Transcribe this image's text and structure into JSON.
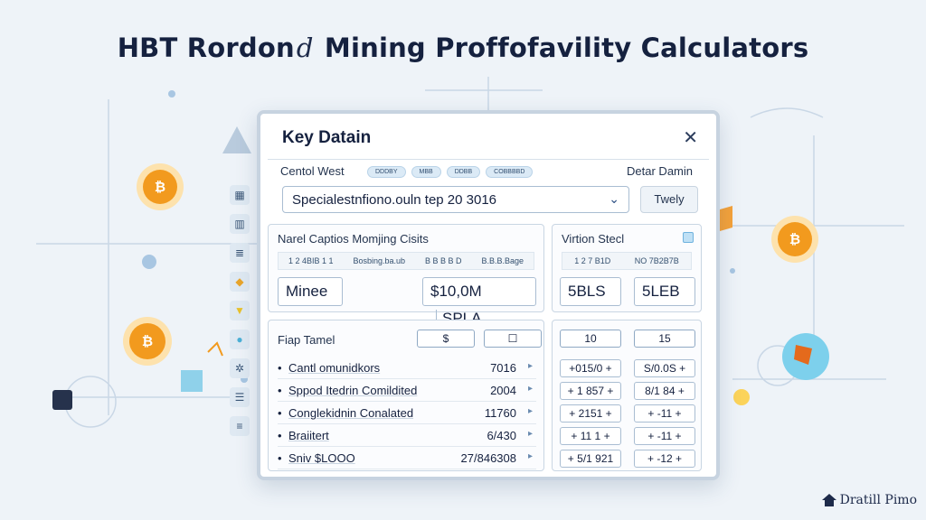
{
  "title": {
    "left": "HBT Rordon",
    "mid": "d",
    "right": "Mining Proffofavility Calculators"
  },
  "window": {
    "title": "Key Datain",
    "close": "✕",
    "row1": {
      "left_label": "Centol West",
      "chips": [
        "DDDBY",
        "MBB",
        "DDBB",
        "COBBBBD"
      ],
      "right_label": "Detar Damin"
    },
    "select": {
      "value": "Specialestnfiono.ouln tep 20 3016",
      "chevron": "⌄"
    },
    "button": "Twely",
    "panel_left": {
      "title": "Narel Captios Momjing Cisits",
      "row": [
        "1 2 4BIB 1 1",
        "Bosbing.ba.ub",
        "B B B B D",
        "B.B.B.Bage"
      ],
      "box1": "Minee",
      "box2": "$10,0M",
      "box3": "SPLA"
    },
    "panel_right": {
      "title": "Virtion Stecl",
      "row": [
        "1 2 7 B1D",
        "NO 7B2B7B"
      ],
      "box1": "5BLS",
      "box2": "5LEB"
    },
    "table_left": {
      "label": "Fiap Tamel",
      "hdr1": "$",
      "hdr2": "☐",
      "rows": [
        {
          "name": "Cantl omunidkors",
          "value": "7016"
        },
        {
          "name": "Sppod Itedrin Comildited",
          "value": "2004"
        },
        {
          "name": "Conglekidnin Conalated",
          "value": "11760"
        },
        {
          "name": "Braiitert",
          "value": "6/430"
        },
        {
          "name": "Sniv $LOOO",
          "value": "27/846308"
        }
      ]
    },
    "table_right": {
      "hdr1": "10",
      "hdr2": "15",
      "rows": [
        [
          "+015/0 +",
          "S/0.0S +"
        ],
        [
          "+ 1 857 +",
          "8/1 84 +"
        ],
        [
          "+ 2151 +",
          "+ -11 +"
        ],
        [
          "+ 11 1 +",
          "+ -11 +"
        ],
        [
          "+ 5/1 921",
          "+ -12 +"
        ]
      ]
    }
  },
  "footer": "Dratill Pimo"
}
